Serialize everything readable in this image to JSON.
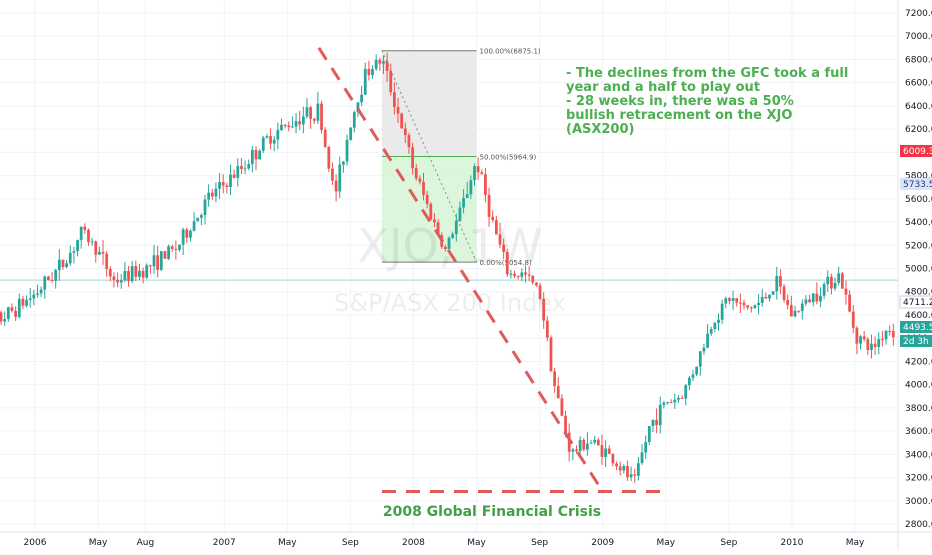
{
  "watermark": {
    "symbol": "XJO, 1W",
    "name": "S&P/ASX 200 Index"
  },
  "annotation": {
    "lines": [
      "- The declines from the GFC took a full",
      "year and a half to play out",
      "- 28 weeks in, there was a 50%",
      "bullish retracement on the XJO",
      "(ASX200)"
    ]
  },
  "caption": "2008 Global Financial Crisis",
  "fib": {
    "level_100": "100.00%(6875.1)",
    "level_50": "50.00%(5964.9)",
    "level_0": "0.00%(5054.8)"
  },
  "price_tags": [
    {
      "label": "6009.3",
      "bg": "#f23645",
      "fg": "#ffffff"
    },
    {
      "label": "5733.5",
      "bg": "#dbe4f5",
      "fg": "#1e3a8a"
    },
    {
      "label": "4711.2",
      "bg": "#ffffff",
      "fg": "#131722"
    },
    {
      "label": "4493.5",
      "bg": "#26a69a",
      "fg": "#ffffff"
    },
    {
      "label": "2d 3h",
      "bg": "#26a69a",
      "fg": "#ffffff"
    }
  ],
  "colors": {
    "up": "#26a69a",
    "down": "#ef5350",
    "dash": "#e05a5a",
    "fib_top_zone": "#e6e6e6",
    "fib_bottom_zone": "#d6f5d6",
    "fib_line_50": "#4caf50",
    "grid": "#f0f3fa"
  },
  "chart_data": {
    "type": "candlestick",
    "title": "XJO, 1W",
    "subtitle": "S&P/ASX 200 Index",
    "y_ticks": [
      2800,
      3000,
      3200,
      3400,
      3600,
      3800,
      4000,
      4200,
      4400,
      4600,
      4800,
      5000,
      5200,
      5400,
      5600,
      5800,
      6000,
      6200,
      6400,
      6600,
      6800,
      7000,
      7200
    ],
    "y_tick_labels": [
      "2800.0",
      "3000.0",
      "3200.0",
      "3400.0",
      "3600.0",
      "3800.0",
      "4000.0",
      "4200.0",
      "4400.0",
      "4600.0",
      "4800.0",
      "5000.0",
      "5200.0",
      "5400.0",
      "5600.0",
      "5800.0",
      "6000.0",
      "6200.0",
      "6400.0",
      "6600.0",
      "6800.0",
      "7000.0",
      "7200.0"
    ],
    "ylim": [
      2750,
      7300
    ],
    "x_ticks": [
      "2006",
      "May",
      "Aug",
      "2007",
      "May",
      "Sep",
      "2008",
      "May",
      "Sep",
      "2009",
      "May",
      "Sep",
      "2010",
      "May"
    ],
    "x_tick_dates": [
      "2006-01",
      "2006-05",
      "2006-08",
      "2007-01",
      "2007-05",
      "2007-09",
      "2008-01",
      "2008-05",
      "2008-09",
      "2009-01",
      "2009-05",
      "2009-09",
      "2010-01",
      "2010-05"
    ],
    "x_range_dates": [
      "2005-09",
      "2010-09"
    ],
    "guide_price": 4900,
    "price_path": [
      {
        "date": "2005-09",
        "value": 4450
      },
      {
        "date": "2005-11",
        "value": 4580
      },
      {
        "date": "2006-01",
        "value": 4780
      },
      {
        "date": "2006-03",
        "value": 5080
      },
      {
        "date": "2006-04",
        "value": 5320
      },
      {
        "date": "2006-05",
        "value": 5150
      },
      {
        "date": "2006-06",
        "value": 4890
      },
      {
        "date": "2006-08",
        "value": 5000
      },
      {
        "date": "2006-10",
        "value": 5180
      },
      {
        "date": "2006-12",
        "value": 5600
      },
      {
        "date": "2007-02",
        "value": 5850
      },
      {
        "date": "2007-04",
        "value": 6150
      },
      {
        "date": "2007-06",
        "value": 6320
      },
      {
        "date": "2007-07",
        "value": 6360
      },
      {
        "date": "2007-08",
        "value": 5620
      },
      {
        "date": "2007-09",
        "value": 6250
      },
      {
        "date": "2007-10",
        "value": 6700
      },
      {
        "date": "2007-11",
        "value": 6800
      },
      {
        "date": "2007-12",
        "value": 6350
      },
      {
        "date": "2008-01",
        "value": 5850
      },
      {
        "date": "2008-02",
        "value": 5500
      },
      {
        "date": "2008-03",
        "value": 5150
      },
      {
        "date": "2008-04",
        "value": 5500
      },
      {
        "date": "2008-05",
        "value": 5930
      },
      {
        "date": "2008-06",
        "value": 5400
      },
      {
        "date": "2008-07",
        "value": 4950
      },
      {
        "date": "2008-08",
        "value": 4950
      },
      {
        "date": "2008-09",
        "value": 4800
      },
      {
        "date": "2008-10",
        "value": 3950
      },
      {
        "date": "2008-11",
        "value": 3400
      },
      {
        "date": "2008-12",
        "value": 3520
      },
      {
        "date": "2009-01",
        "value": 3450
      },
      {
        "date": "2009-02",
        "value": 3300
      },
      {
        "date": "2009-03",
        "value": 3150
      },
      {
        "date": "2009-04",
        "value": 3650
      },
      {
        "date": "2009-05",
        "value": 3850
      },
      {
        "date": "2009-06",
        "value": 3900
      },
      {
        "date": "2009-07",
        "value": 4200
      },
      {
        "date": "2009-08",
        "value": 4550
      },
      {
        "date": "2009-09",
        "value": 4750
      },
      {
        "date": "2009-10",
        "value": 4650
      },
      {
        "date": "2009-11",
        "value": 4700
      },
      {
        "date": "2009-12",
        "value": 4880
      },
      {
        "date": "2010-01",
        "value": 4600
      },
      {
        "date": "2010-03",
        "value": 4850
      },
      {
        "date": "2010-04",
        "value": 4950
      },
      {
        "date": "2010-05",
        "value": 4450
      },
      {
        "date": "2010-06",
        "value": 4300
      },
      {
        "date": "2010-07",
        "value": 4480
      },
      {
        "date": "2010-08",
        "value": 4450
      },
      {
        "date": "2010-09",
        "value": 4500
      }
    ],
    "fib_retracement": {
      "start_date": "2007-11",
      "end_date": "2008-05",
      "high": 6875.1,
      "mid": 5964.9,
      "low": 5054.8
    },
    "decline_line": {
      "from": {
        "date": "2007-07",
        "value": 6900
      },
      "to": {
        "date": "2009-01",
        "value": 3080
      }
    },
    "bottom_line": {
      "from": {
        "date": "2007-11",
        "value": 3080
      },
      "to": {
        "date": "2009-05",
        "value": 3080
      }
    }
  }
}
